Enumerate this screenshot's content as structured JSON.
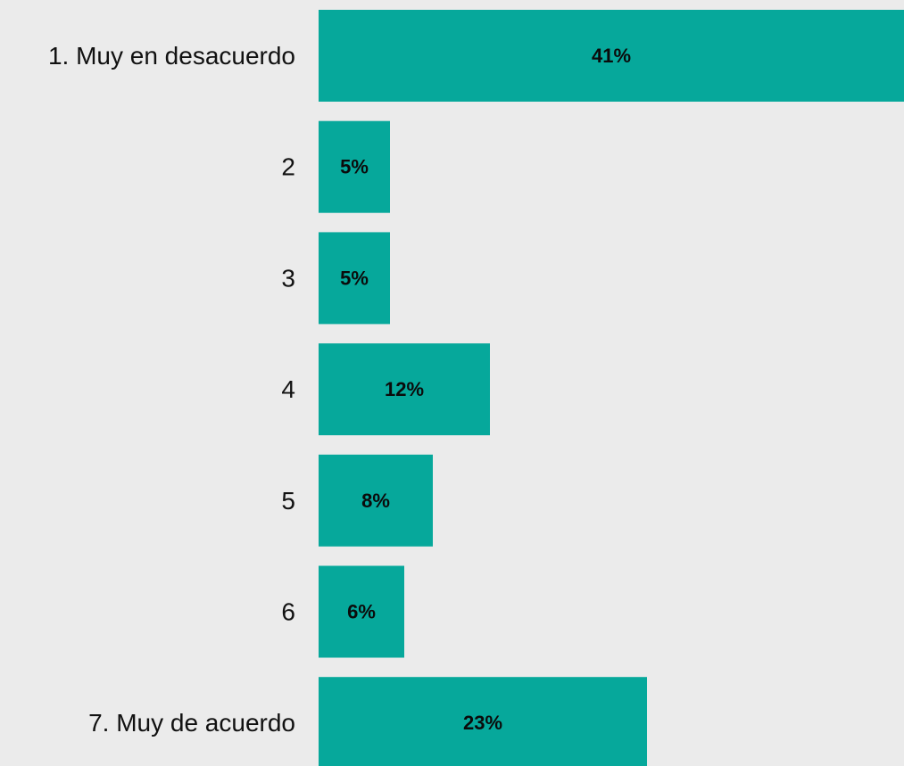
{
  "chart_data": {
    "type": "bar",
    "orientation": "horizontal",
    "categories": [
      "1. Muy en desacuerdo",
      "2",
      "3",
      "4",
      "5",
      "6",
      "7. Muy de acuerdo"
    ],
    "values": [
      41,
      5,
      5,
      12,
      8,
      6,
      23
    ],
    "value_labels": [
      "41%",
      "5%",
      "5%",
      "12%",
      "8%",
      "6%",
      "23%"
    ],
    "unit": "%",
    "xlim": [
      0,
      41
    ],
    "grid": false,
    "legend": "none",
    "title": "",
    "xlabel": "",
    "ylabel": ""
  },
  "colors": {
    "background": "#ebebeb",
    "bar": "#06a89b",
    "text": "#111111"
  }
}
